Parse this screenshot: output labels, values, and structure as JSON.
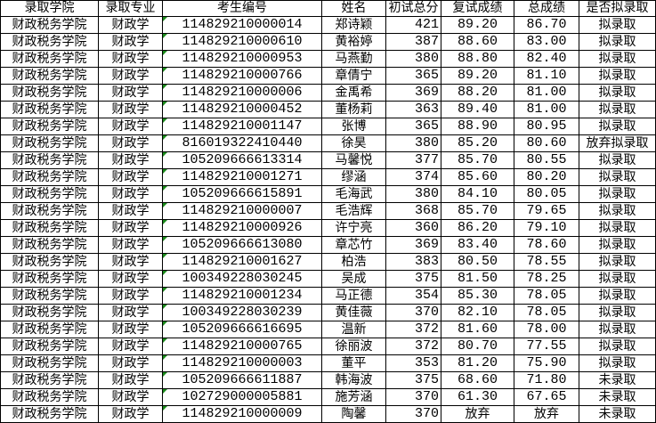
{
  "colors": {
    "grid": "#000000",
    "text_flag": "#1a8a1a"
  },
  "headers": [
    "录取学院",
    "录取专业",
    "考生编号",
    "姓名",
    "初试总分",
    "复试成绩",
    "总成绩",
    "是否拟录取"
  ],
  "rows": [
    [
      "财政税务学院",
      "财政学",
      "114829210000014",
      "郑诗颖",
      "421",
      "89.20",
      "86.70",
      "拟录取"
    ],
    [
      "财政税务学院",
      "财政学",
      "114829210000610",
      "黄裕婷",
      "387",
      "88.60",
      "83.00",
      "拟录取"
    ],
    [
      "财政税务学院",
      "财政学",
      "114829210000953",
      "马燕勤",
      "380",
      "88.80",
      "82.40",
      "拟录取"
    ],
    [
      "财政税务学院",
      "财政学",
      "114829210000766",
      "章倩宁",
      "365",
      "89.20",
      "81.10",
      "拟录取"
    ],
    [
      "财政税务学院",
      "财政学",
      "114829210000006",
      "金禹希",
      "369",
      "88.20",
      "81.00",
      "拟录取"
    ],
    [
      "财政税务学院",
      "财政学",
      "114829210000452",
      "董杨莉",
      "363",
      "89.40",
      "81.00",
      "拟录取"
    ],
    [
      "财政税务学院",
      "财政学",
      "114829210001147",
      "张博",
      "365",
      "88.90",
      "80.95",
      "拟录取"
    ],
    [
      "财政税务学院",
      "财政学",
      "816019322410440",
      "徐昊",
      "380",
      "85.20",
      "80.60",
      "放弃拟录取"
    ],
    [
      "财政税务学院",
      "财政学",
      "105209666613314",
      "马馨悦",
      "377",
      "85.70",
      "80.55",
      "拟录取"
    ],
    [
      "财政税务学院",
      "财政学",
      "114829210001271",
      "缪涵",
      "374",
      "85.60",
      "80.20",
      "拟录取"
    ],
    [
      "财政税务学院",
      "财政学",
      "105209666615891",
      "毛海武",
      "380",
      "84.10",
      "80.05",
      "拟录取"
    ],
    [
      "财政税务学院",
      "财政学",
      "114829210000007",
      "毛浩辉",
      "368",
      "85.70",
      "79.65",
      "拟录取"
    ],
    [
      "财政税务学院",
      "财政学",
      "114829210000926",
      "许宁亮",
      "360",
      "86.20",
      "79.10",
      "拟录取"
    ],
    [
      "财政税务学院",
      "财政学",
      "105209666613080",
      "章芯竹",
      "369",
      "83.40",
      "78.60",
      "拟录取"
    ],
    [
      "财政税务学院",
      "财政学",
      "114829210001627",
      "柏浩",
      "383",
      "80.50",
      "78.55",
      "拟录取"
    ],
    [
      "财政税务学院",
      "财政学",
      "100349228030245",
      "吴成",
      "375",
      "81.50",
      "78.25",
      "拟录取"
    ],
    [
      "财政税务学院",
      "财政学",
      "114829210001234",
      "马正德",
      "354",
      "85.30",
      "78.05",
      "拟录取"
    ],
    [
      "财政税务学院",
      "财政学",
      "100349228030239",
      "黄佳薇",
      "370",
      "82.10",
      "78.05",
      "拟录取"
    ],
    [
      "财政税务学院",
      "财政学",
      "105209666616695",
      "温新",
      "372",
      "81.60",
      "78.00",
      "拟录取"
    ],
    [
      "财政税务学院",
      "财政学",
      "114829210000765",
      "徐丽波",
      "372",
      "80.70",
      "77.55",
      "拟录取"
    ],
    [
      "财政税务学院",
      "财政学",
      "114829210000003",
      "董平",
      "353",
      "81.20",
      "75.90",
      "拟录取"
    ],
    [
      "财政税务学院",
      "财政学",
      "105209666611887",
      "韩海波",
      "375",
      "68.60",
      "71.80",
      "未录取"
    ],
    [
      "财政税务学院",
      "财政学",
      "102729000005881",
      "施芳涵",
      "370",
      "61.30",
      "67.65",
      "未录取"
    ],
    [
      "财政税务学院",
      "财政学",
      "114829210000009",
      "陶馨",
      "370",
      "放弃",
      "放弃",
      "未录取"
    ]
  ]
}
